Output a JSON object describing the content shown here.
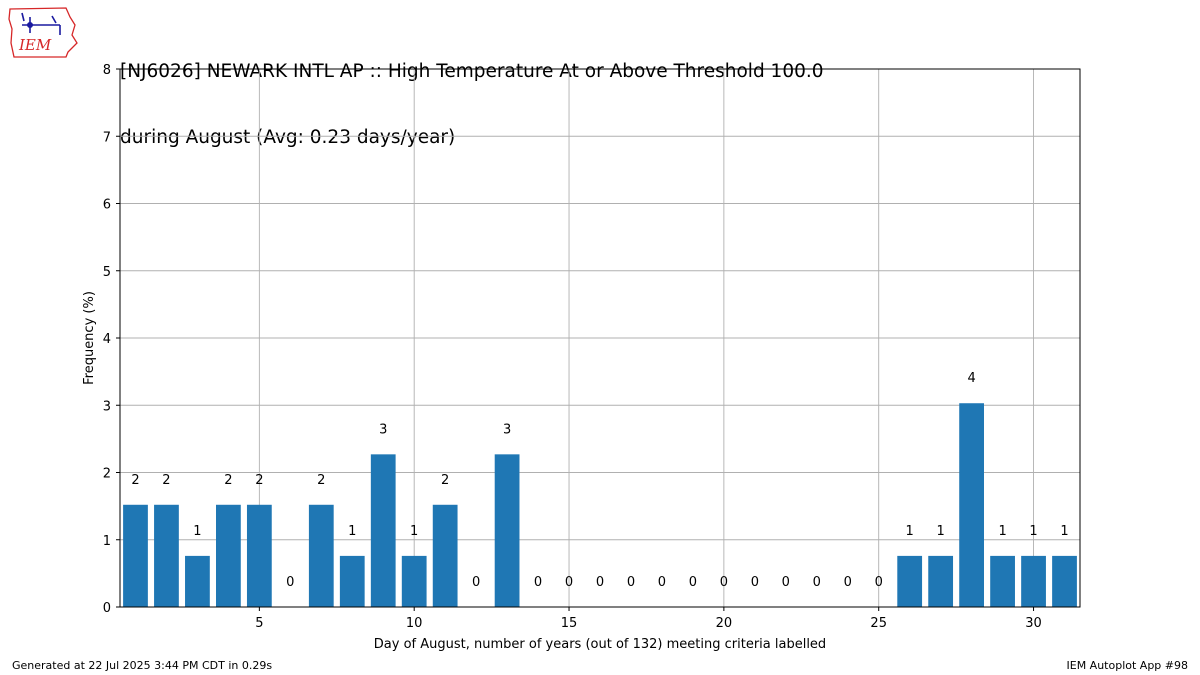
{
  "logo": {
    "text": "IEM"
  },
  "title_lines": [
    "[NJ6026] NEWARK INTL AP :: High Temperature At or Above Threshold 100.0",
    "during August (Avg: 0.23 days/year)"
  ],
  "footer": {
    "generated": "Generated at 22 Jul 2025 3:44 PM CDT in 0.29s",
    "app": "IEM Autoplot App #98"
  },
  "colors": {
    "bar": "#1f77b4",
    "grid": "#b0b0b0"
  },
  "chart_data": {
    "type": "bar",
    "title": "[NJ6026] NEWARK INTL AP :: High Temperature At or Above Threshold 100.0 during August (Avg: 0.23 days/year)",
    "xlabel": "Day of August, number of years (out of 132) meeting criteria labelled",
    "ylabel": "Frequency (%)",
    "xlim": [
      0.5,
      31.5
    ],
    "ylim": [
      0,
      8
    ],
    "xticks": [
      5,
      10,
      15,
      20,
      25,
      30
    ],
    "yticks": [
      0,
      1,
      2,
      3,
      4,
      5,
      6,
      7,
      8
    ],
    "grid": true,
    "categories": [
      1,
      2,
      3,
      4,
      5,
      6,
      7,
      8,
      9,
      10,
      11,
      12,
      13,
      14,
      15,
      16,
      17,
      18,
      19,
      20,
      21,
      22,
      23,
      24,
      25,
      26,
      27,
      28,
      29,
      30,
      31
    ],
    "counts": [
      2,
      2,
      1,
      2,
      2,
      0,
      2,
      1,
      3,
      1,
      2,
      0,
      3,
      0,
      0,
      0,
      0,
      0,
      0,
      0,
      0,
      0,
      0,
      0,
      0,
      1,
      1,
      4,
      1,
      1,
      1
    ],
    "values": [
      1.52,
      1.52,
      0.76,
      1.52,
      1.52,
      0,
      1.52,
      0.76,
      2.27,
      0.76,
      1.52,
      0,
      2.27,
      0,
      0,
      0,
      0,
      0,
      0,
      0,
      0,
      0,
      0,
      0,
      0,
      0.76,
      0.76,
      3.03,
      0.76,
      0.76,
      0.76
    ]
  }
}
